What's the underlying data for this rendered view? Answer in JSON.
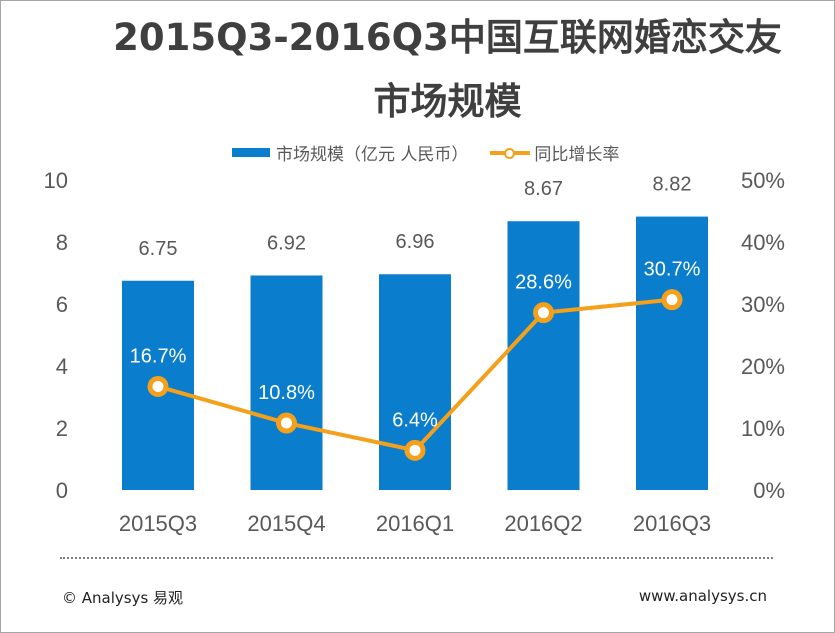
{
  "title_line1": "2015Q3-2016Q3中国互联网婚恋交友",
  "title_line2": "市场规模",
  "legend": {
    "bar": "市场规模（亿元 人民币）",
    "line": "同比增长率"
  },
  "colors": {
    "bar": "#0a7dcc",
    "line": "#f5a01a"
  },
  "chart_data": {
    "type": "bar+line",
    "title": "2015Q3-2016Q3中国互联网婚恋交友市场规模",
    "categories": [
      "2015Q3",
      "2015Q4",
      "2016Q1",
      "2016Q2",
      "2016Q3"
    ],
    "series": [
      {
        "name": "市场规模（亿元 人民币）",
        "type": "bar",
        "axis": "left",
        "values": [
          6.75,
          6.92,
          6.96,
          8.67,
          8.82
        ],
        "labels": [
          "6.75",
          "6.92",
          "6.96",
          "8.67",
          "8.82"
        ]
      },
      {
        "name": "同比增长率",
        "type": "line",
        "axis": "right",
        "values": [
          16.7,
          10.8,
          6.4,
          28.6,
          30.7
        ],
        "labels": [
          "16.7%",
          "10.8%",
          "6.4%",
          "28.6%",
          "30.7%"
        ]
      }
    ],
    "left_axis": {
      "ylim": [
        0,
        10
      ],
      "ticks": [
        "0",
        "2",
        "4",
        "6",
        "8",
        "10"
      ]
    },
    "right_axis": {
      "ylim": [
        0,
        50
      ],
      "ticks": [
        "0%",
        "10%",
        "20%",
        "30%",
        "40%",
        "50%"
      ]
    },
    "legend_position": "top"
  },
  "footer": {
    "left": "© Analysys 易观",
    "right": "www.analysys.cn"
  }
}
